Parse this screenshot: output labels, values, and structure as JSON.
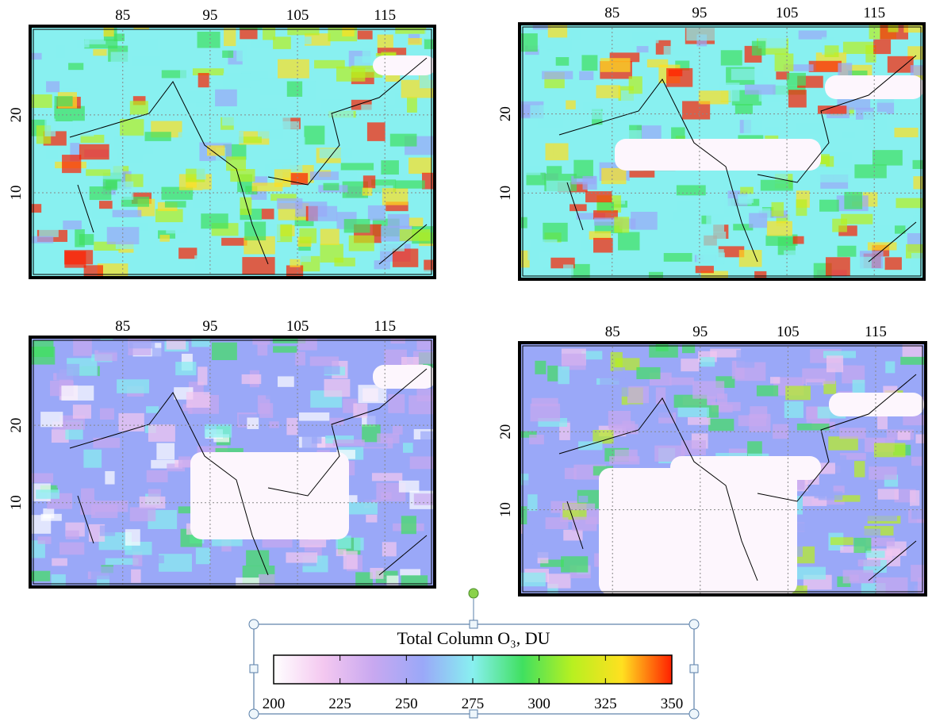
{
  "panels": [
    {
      "lon_ticks": [
        85,
        95,
        105,
        115
      ],
      "lat_ticks": [
        20,
        10
      ],
      "lonlim": [
        74.4,
        120.7
      ],
      "latlim": [
        -0.9,
        31.4
      ]
    },
    {
      "lon_ticks": [
        85,
        95,
        105,
        115
      ],
      "lat_ticks": [
        20,
        10
      ],
      "lonlim": [
        74.4,
        120.7
      ],
      "latlim": [
        -0.9,
        31.4
      ]
    },
    {
      "lon_ticks": [
        85,
        95,
        105,
        115
      ],
      "lat_ticks": [
        20,
        10
      ],
      "lonlim": [
        74.4,
        120.7
      ],
      "latlim": [
        -0.9,
        31.4
      ]
    },
    {
      "lon_ticks": [
        85,
        95,
        105,
        115
      ],
      "lat_ticks": [
        20,
        10
      ],
      "lonlim": [
        74.4,
        120.7
      ],
      "latlim": [
        -0.9,
        31.4
      ]
    }
  ],
  "colorbar": {
    "title": "Total Column O₃, DU",
    "range": [
      200,
      350
    ],
    "ticks": [
      200,
      225,
      250,
      275,
      300,
      325,
      350
    ],
    "colors": [
      "#ffffff",
      "#f4c8f0",
      "#c8a8f0",
      "#9aa8f8",
      "#88f0f0",
      "#40e060",
      "#b8f020",
      "#ffe020",
      "#ff2000"
    ]
  }
}
